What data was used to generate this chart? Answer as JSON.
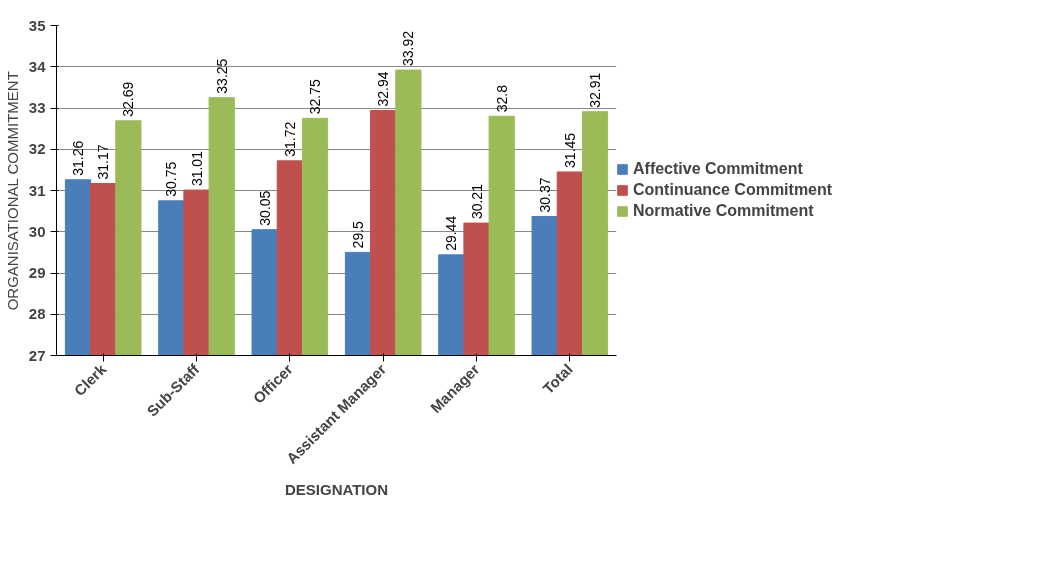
{
  "chart_data": {
    "type": "bar",
    "xlabel": "DESIGNATION",
    "ylabel": "ORGANISATIONAL COMMITMENT",
    "categories": [
      "Clerk",
      "Sub-Staff",
      "Officer",
      "Assistant Manager",
      "Manager",
      "Total"
    ],
    "series": [
      {
        "name": "Affective Commitment",
        "color": "#4a7ebb",
        "values": [
          31.26,
          30.75,
          30.05,
          29.5,
          29.44,
          30.37
        ]
      },
      {
        "name": "Continuance Commitment",
        "color": "#c0504d",
        "values": [
          31.17,
          31.01,
          31.72,
          32.94,
          30.21,
          31.45
        ]
      },
      {
        "name": "Normative Commitment",
        "color": "#9bbb59",
        "values": [
          32.69,
          33.25,
          32.75,
          33.92,
          32.8,
          32.91
        ]
      }
    ],
    "ylim": [
      27,
      35
    ],
    "yticks": [
      27,
      28,
      29,
      30,
      31,
      32,
      33,
      34,
      35
    ],
    "grid": "y",
    "legend": "right",
    "data_labels": true
  }
}
